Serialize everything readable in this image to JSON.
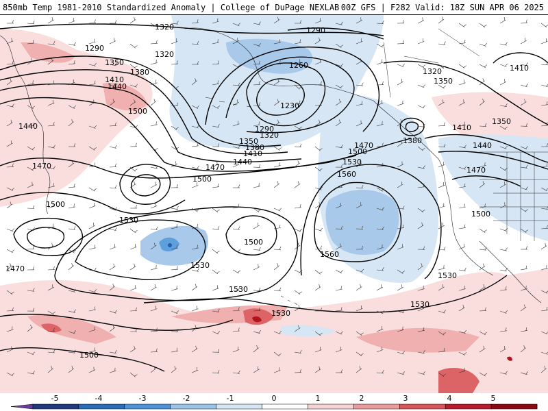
{
  "header": {
    "title_left": "850mb Temp 1981-2010 Standardized Anomaly | College of DuPage NEXLAB",
    "title_right": "00Z GFS | F282 Valid: 18Z SUN APR 06 2025"
  },
  "contour_labels": [
    {
      "key": "l1320a",
      "text": "1320"
    },
    {
      "key": "l1290a",
      "text": "1290"
    },
    {
      "key": "l1290b",
      "text": "1290"
    },
    {
      "key": "l1320b",
      "text": "1320"
    },
    {
      "key": "l1350a",
      "text": "1350"
    },
    {
      "key": "l1380a",
      "text": "1380"
    },
    {
      "key": "l1410a",
      "text": "1410"
    },
    {
      "key": "l1440a",
      "text": "1440"
    },
    {
      "key": "l1260",
      "text": "1260"
    },
    {
      "key": "l1230",
      "text": "1230"
    },
    {
      "key": "l1500a",
      "text": "1500"
    },
    {
      "key": "l1440b",
      "text": "1440"
    },
    {
      "key": "l1290c",
      "text": "1290"
    },
    {
      "key": "l1320c",
      "text": "1320"
    },
    {
      "key": "l1350b",
      "text": "1350"
    },
    {
      "key": "l1380b",
      "text": "1380"
    },
    {
      "key": "l1410b",
      "text": "1410"
    },
    {
      "key": "l1440c",
      "text": "1440"
    },
    {
      "key": "l1470a",
      "text": "1470"
    },
    {
      "key": "l1500b",
      "text": "1500"
    },
    {
      "key": "l1530a",
      "text": "1530"
    },
    {
      "key": "l1470b",
      "text": "1470"
    },
    {
      "key": "l1500c",
      "text": "1500"
    },
    {
      "key": "l1470c",
      "text": "1470"
    },
    {
      "key": "l1380c",
      "text": "1380"
    },
    {
      "key": "l1320d",
      "text": "1320"
    },
    {
      "key": "l1350c",
      "text": "1350"
    },
    {
      "key": "l1410c",
      "text": "1410"
    },
    {
      "key": "l1440d",
      "text": "1440"
    },
    {
      "key": "l1470d",
      "text": "1470"
    },
    {
      "key": "l1410d",
      "text": "1410"
    },
    {
      "key": "l1350d",
      "text": "1350"
    },
    {
      "key": "l1500d",
      "text": "1500"
    },
    {
      "key": "l1560a",
      "text": "1560"
    },
    {
      "key": "l1530b",
      "text": "1530"
    },
    {
      "key": "l1500e",
      "text": "1500"
    },
    {
      "key": "l1500f",
      "text": "1500"
    },
    {
      "key": "l1470e",
      "text": "1470"
    },
    {
      "key": "l1530c",
      "text": "1530"
    },
    {
      "key": "l1560b",
      "text": "1560"
    },
    {
      "key": "l1530d",
      "text": "1530"
    },
    {
      "key": "l1530e",
      "text": "1530"
    },
    {
      "key": "l1530f",
      "text": "1530"
    },
    {
      "key": "l1530g",
      "text": "1530"
    },
    {
      "key": "l1500g",
      "text": "1500"
    }
  ],
  "colorbar": {
    "ticks": [
      "-5",
      "-4",
      "-3",
      "-2",
      "-1",
      "0",
      "1",
      "2",
      "3",
      "4",
      "5"
    ],
    "colors": [
      "#6a3d9a",
      "#1f3a7a",
      "#2b6cb8",
      "#4f93d6",
      "#9cc3e8",
      "#d6e6f5",
      "#ffffff",
      "#f6d3d3",
      "#ea9c9c",
      "#d5575a",
      "#b51e2a",
      "#8c0a14",
      "#f2c200"
    ]
  },
  "anomaly_colors": {
    "cold_light": "#d7e6f4",
    "cold_mid": "#a9c9ea",
    "cold_strong": "#5e9fdd",
    "cold_core": "#245ea8",
    "warm_light": "#fadede",
    "warm_mid": "#f0b0b0",
    "warm_strong": "#dd6466",
    "warm_core": "#b2141e"
  }
}
